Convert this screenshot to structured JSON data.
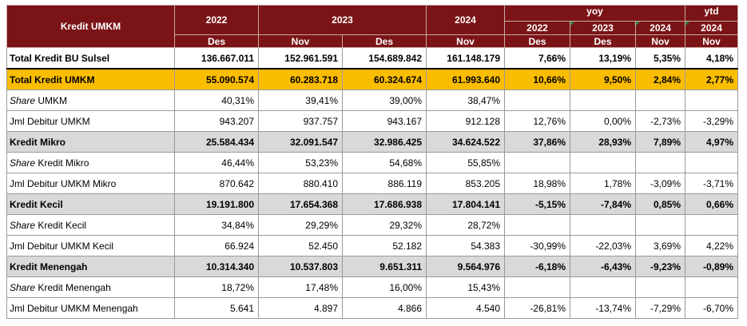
{
  "header": {
    "label": "Kredit UMKM",
    "years": [
      "2022",
      "2023",
      "2024"
    ],
    "yoy_label": "yoy",
    "ytd_label": "ytd",
    "months": [
      "Des",
      "Nov",
      "Des",
      "Nov"
    ],
    "yoy_years": [
      "2022",
      "2023",
      "2024"
    ],
    "yoy_months": [
      "Des",
      "Des",
      "Nov"
    ],
    "ytd_year": "2024",
    "ytd_month": "Nov"
  },
  "rows": [
    {
      "label": "Total Kredit BU Sulsel",
      "label_italic": "",
      "values": [
        "136.667.011",
        "152.961.591",
        "154.689.842",
        "161.148.179"
      ],
      "yoy": [
        "7,66%",
        "13,19%",
        "5,35%"
      ],
      "ytd": "4,18%"
    },
    {
      "label": "Total Kredit UMKM",
      "label_italic": "",
      "values": [
        "55.090.574",
        "60.283.718",
        "60.324.674",
        "61.993.640"
      ],
      "yoy": [
        "10,66%",
        "9,50%",
        "2,84%"
      ],
      "ytd": "2,77%"
    },
    {
      "label": " UMKM",
      "label_italic": "Share",
      "values": [
        "40,31%",
        "39,41%",
        "39,00%",
        "38,47%"
      ],
      "yoy": [
        "",
        "",
        ""
      ],
      "ytd": ""
    },
    {
      "label": "Jml Debitur UMKM",
      "label_italic": "",
      "values": [
        "943.207",
        "937.757",
        "943.167",
        "912.128"
      ],
      "yoy": [
        "12,76%",
        "0,00%",
        "-2,73%"
      ],
      "ytd": "-3,29%"
    },
    {
      "label": "Kredit Mikro",
      "label_italic": "",
      "values": [
        "25.584.434",
        "32.091.547",
        "32.986.425",
        "34.624.522"
      ],
      "yoy": [
        "37,86%",
        "28,93%",
        "7,89%"
      ],
      "ytd": "4,97%"
    },
    {
      "label": " Kredit Mikro",
      "label_italic": "Share",
      "values": [
        "46,44%",
        "53,23%",
        "54,68%",
        "55,85%"
      ],
      "yoy": [
        "",
        "",
        ""
      ],
      "ytd": ""
    },
    {
      "label": "Jml Debitur UMKM Mikro",
      "label_italic": "",
      "values": [
        "870.642",
        "880.410",
        "886.119",
        "853.205"
      ],
      "yoy": [
        "18,98%",
        "1,78%",
        "-3,09%"
      ],
      "ytd": "-3,71%"
    },
    {
      "label": "Kredit Kecil",
      "label_italic": "",
      "values": [
        "19.191.800",
        "17.654.368",
        "17.686.938",
        "17.804.141"
      ],
      "yoy": [
        "-5,15%",
        "-7,84%",
        "0,85%"
      ],
      "ytd": "0,66%"
    },
    {
      "label": " Kredit Kecil",
      "label_italic": "Share",
      "values": [
        "34,84%",
        "29,29%",
        "29,32%",
        "28,72%"
      ],
      "yoy": [
        "",
        "",
        ""
      ],
      "ytd": ""
    },
    {
      "label": "Jml Debitur UMKM Kecil",
      "label_italic": "",
      "values": [
        "66.924",
        "52.450",
        "52.182",
        "54.383"
      ],
      "yoy": [
        "-30,99%",
        "-22,03%",
        "3,69%"
      ],
      "ytd": "4,22%"
    },
    {
      "label": "Kredit Menengah",
      "label_italic": "",
      "values": [
        "10.314.340",
        "10.537.803",
        "9.651.311",
        "9.564.976"
      ],
      "yoy": [
        "-6,18%",
        "-6,43%",
        "-9,23%"
      ],
      "ytd": "-0,89%"
    },
    {
      "label": " Kredit Menengah",
      "label_italic": "Share",
      "values": [
        "18,72%",
        "17,48%",
        "16,00%",
        "15,43%"
      ],
      "yoy": [
        "",
        "",
        ""
      ],
      "ytd": ""
    },
    {
      "label": "Jml Debitur UMKM Menengah",
      "label_italic": "",
      "values": [
        "5.641",
        "4.897",
        "4.866",
        "4.540"
      ],
      "yoy": [
        "-26,81%",
        "-13,74%",
        "-7,29%"
      ],
      "ytd": "-6,70%"
    }
  ],
  "row_styles": [
    "bold total-bu",
    "bold gold",
    "",
    "",
    "bold gray",
    "",
    "",
    "bold gray",
    "",
    "",
    "bold gray",
    "",
    ""
  ],
  "colors": {
    "header_bg": "#7b1416",
    "highlight_gold": "#fbbd00",
    "section_gray": "#d9d9d9",
    "header_text": "#ffffff"
  }
}
